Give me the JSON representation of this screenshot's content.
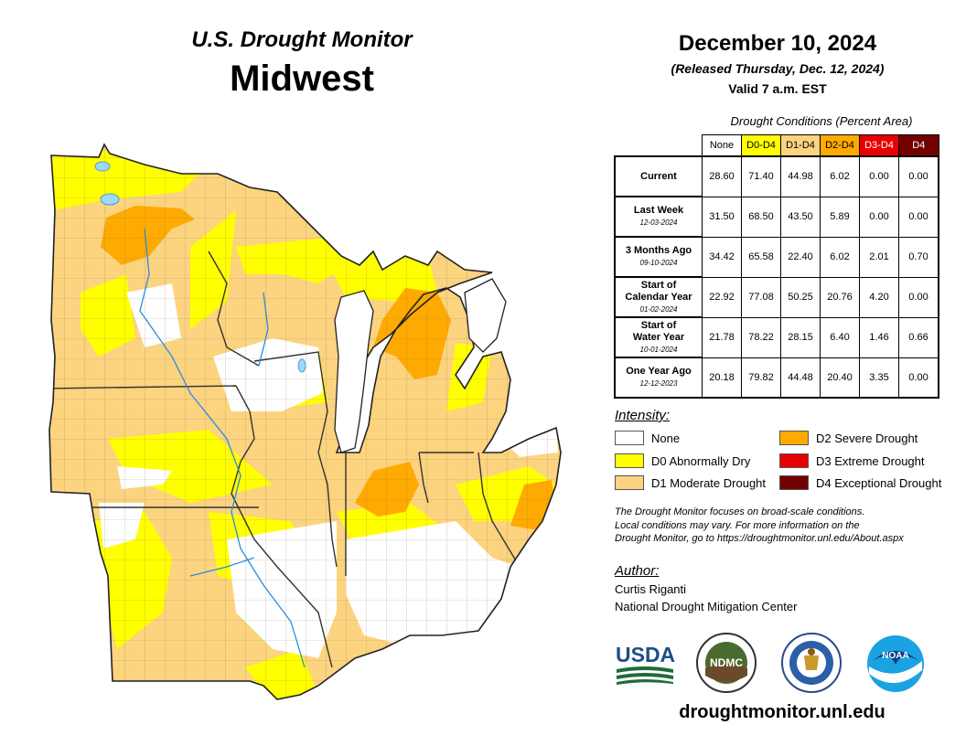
{
  "header": {
    "product": "U.S. Drought Monitor",
    "region": "Midwest",
    "date": "December 10, 2024",
    "released": "(Released Thursday, Dec. 12, 2024)",
    "valid": "Valid 7 a.m. EST"
  },
  "stats": {
    "caption": "Drought Conditions (Percent Area)",
    "columns": [
      "None",
      "D0-D4",
      "D1-D4",
      "D2-D4",
      "D3-D4",
      "D4"
    ],
    "rows": [
      {
        "label": "Current",
        "label2": "",
        "date": "",
        "values": [
          "28.60",
          "71.40",
          "44.98",
          "6.02",
          "0.00",
          "0.00"
        ]
      },
      {
        "label": "Last Week",
        "label2": "",
        "date": "12-03-2024",
        "values": [
          "31.50",
          "68.50",
          "43.50",
          "5.89",
          "0.00",
          "0.00"
        ]
      },
      {
        "label": "3 Months Ago",
        "label2": "",
        "date": "09-10-2024",
        "values": [
          "34.42",
          "65.58",
          "22.40",
          "6.02",
          "2.01",
          "0.70"
        ]
      },
      {
        "label": "Start of",
        "label2": "Calendar Year",
        "date": "01-02-2024",
        "values": [
          "22.92",
          "77.08",
          "50.25",
          "20.76",
          "4.20",
          "0.00"
        ]
      },
      {
        "label": "Start of",
        "label2": "Water Year",
        "date": "10-01-2024",
        "values": [
          "21.78",
          "78.22",
          "28.15",
          "6.40",
          "1.46",
          "0.66"
        ]
      },
      {
        "label": "One Year Ago",
        "label2": "",
        "date": "12-12-2023",
        "values": [
          "20.18",
          "79.82",
          "44.48",
          "20.40",
          "3.35",
          "0.00"
        ]
      }
    ]
  },
  "legend": {
    "title": "Intensity:",
    "items": [
      {
        "label": "None",
        "color": "#ffffff"
      },
      {
        "label": "D0 Abnormally Dry",
        "color": "#ffff00"
      },
      {
        "label": "D1 Moderate Drought",
        "color": "#fcd37f"
      },
      {
        "label": "D2 Severe Drought",
        "color": "#ffaa00"
      },
      {
        "label": "D3 Extreme Drought",
        "color": "#e60000"
      },
      {
        "label": "D4 Exceptional Drought",
        "color": "#730000"
      }
    ]
  },
  "note": {
    "line1": "The Drought Monitor focuses on broad-scale conditions.",
    "line2": "Local conditions may vary. For more information on the",
    "line3": "Drought Monitor, go to https://droughtmonitor.unl.edu/About.aspx"
  },
  "author": {
    "title": "Author:",
    "name": "Curtis Riganti",
    "org": "National Drought Mitigation Center"
  },
  "logos": {
    "usda": "USDA",
    "ndmc": "NDMC",
    "noaa": "NOAA",
    "ndmc_ring": "NATIONAL DROUGHT MITIGATION CENTER"
  },
  "colors": {
    "none": "#ffffff",
    "d0": "#ffff00",
    "d1": "#fcd37f",
    "d2": "#ffaa00",
    "d3": "#e60000",
    "d4": "#730000",
    "water": "#9ed9f7"
  },
  "website": "droughtmonitor.unl.edu"
}
